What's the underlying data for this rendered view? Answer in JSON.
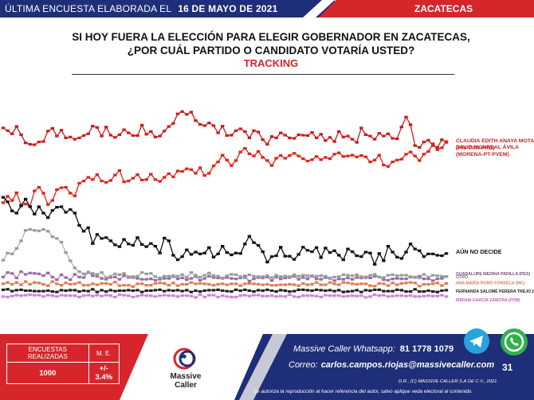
{
  "header": {
    "left_label": "ÚLTIMA ENCUESTA ELABORADA EL",
    "date": "16 DE MAYO DE 2021",
    "region": "ZACATECAS"
  },
  "title_line1": "SI HOY FUERA LA ELECCIÓN PARA ELEGIR GOBERNADOR EN ZACATECAS,",
  "title_line2": "¿POR CUÁL PARTIDO O CANDIDATO VOTARÍA USTED?",
  "subtitle": "TRACKING",
  "colors": {
    "blue": "#1f2e78",
    "red": "#d6262c",
    "anaya": "#c81e1e",
    "monreal": "#e2231a",
    "no_decide": "#111111",
    "medina": "#9a6aa6",
    "romo": "#e07b52",
    "otro": "#9b9b9b",
    "perera": "#222222",
    "garcia": "#d77fd8"
  },
  "chart_data": {
    "type": "line",
    "x_points": 100,
    "ylim": [
      0,
      50
    ],
    "grid": false,
    "legend": "right-end labels",
    "series": [
      {
        "name": "CLAUDIA EDITH ANAYA MOTA (PRI-PAN-PRD)",
        "key": "anaya",
        "values": [
          40.2,
          39.6,
          38.9,
          40.5,
          38.7,
          36.9,
          36.6,
          36.5,
          37.1,
          37.2,
          39.5,
          40.1,
          38.4,
          39.7,
          38.0,
          38.2,
          37.7,
          38.0,
          38.5,
          38.9,
          40.6,
          40.3,
          38.4,
          40.4,
          38.6,
          38.1,
          38.7,
          39.8,
          39.1,
          38.5,
          38.5,
          40.8,
          38.8,
          39.4,
          38.2,
          38.4,
          39.5,
          40.5,
          41.2,
          43.3,
          43.8,
          43.2,
          43.7,
          41.8,
          41.0,
          40.7,
          41.3,
          40.7,
          39.1,
          40.6,
          38.5,
          38.6,
          39.6,
          40.0,
          39.4,
          38.0,
          39.6,
          39.3,
          37.6,
          36.6,
          38.3,
          38.0,
          39.1,
          38.6,
          38.0,
          37.9,
          38.7,
          38.6,
          38.5,
          39.2,
          38.0,
          38.8,
          37.4,
          38.1,
          37.2,
          39.4,
          38.2,
          38.4,
          37.7,
          37.0,
          40.2,
          38.7,
          38.4,
          37.7,
          39.0,
          38.4,
          38.9,
          37.9,
          37.8,
          40.4,
          42.6,
          40.9,
          36.3,
          35.9,
          37.1,
          37.5,
          36.3,
          35.9,
          37.6,
          37.0
        ]
      },
      {
        "name": "DAVID MONREAL ÁVILA (MORENA-PT-PVEM)",
        "key": "monreal",
        "values": [
          23.7,
          25.1,
          24.2,
          25.9,
          23.2,
          23.4,
          22.9,
          26.3,
          27.1,
          25.8,
          23.3,
          24.2,
          26.6,
          27.0,
          27.1,
          25.8,
          25.2,
          28.0,
          28.5,
          29.3,
          28.8,
          29.9,
          28.5,
          28.2,
          28.6,
          29.8,
          30.8,
          28.3,
          28.5,
          29.1,
          29.9,
          28.7,
          28.8,
          30.0,
          28.8,
          28.4,
          29.3,
          30.1,
          29.4,
          30.7,
          30.6,
          31.2,
          31.0,
          30.2,
          31.4,
          29.7,
          30.2,
          31.8,
          32.7,
          34.2,
          33.1,
          31.9,
          33.0,
          34.9,
          35.7,
          34.5,
          34.0,
          35.0,
          33.7,
          33.0,
          31.9,
          33.5,
          34.1,
          33.5,
          34.1,
          34.6,
          34.0,
          33.4,
          32.9,
          33.2,
          33.9,
          33.2,
          33.7,
          33.4,
          34.4,
          34.7,
          33.9,
          34.0,
          34.2,
          33.8,
          34.1,
          33.8,
          32.7,
          33.1,
          34.2,
          32.0,
          31.7,
          32.7,
          33.1,
          33.3,
          34.4,
          34.9,
          34.0,
          33.0,
          34.4,
          35.0,
          36.7,
          35.4,
          35.8,
          37.2
        ]
      },
      {
        "name": "AÚN NO DECIDE",
        "key": "no_decide",
        "values": [
          24.9,
          23.9,
          21.9,
          21.4,
          23.0,
          24.5,
          22.8,
          21.2,
          22.8,
          21.4,
          20.4,
          22.0,
          22.7,
          22.8,
          21.6,
          22.2,
          21.4,
          18.7,
          17.4,
          18.2,
          14.7,
          16.7,
          15.8,
          16.0,
          15.3,
          14.4,
          14.0,
          15.6,
          14.6,
          14.3,
          16.0,
          14.5,
          14.0,
          14.7,
          14.1,
          12.6,
          15.9,
          15.3,
          12.1,
          11.1,
          11.8,
          13.3,
          12.3,
          12.8,
          12.4,
          12.6,
          13.8,
          11.7,
          12.4,
          14.1,
          12.7,
          12.2,
          12.6,
          12.5,
          14.6,
          16.3,
          14.9,
          14.3,
          12.9,
          10.6,
          11.8,
          12.0,
          13.9,
          11.9,
          11.9,
          11.2,
          12.3,
          13.9,
          13.2,
          12.9,
          13.8,
          11.6,
          13.7,
          12.7,
          13.1,
          12.1,
          11.1,
          13.5,
          12.9,
          12.0,
          11.8,
          12.8,
          12.6,
          10.1,
          12.5,
          10.9,
          14.1,
          12.8,
          11.7,
          11.4,
          12.8,
          14.6,
          13.5,
          13.1,
          11.8,
          12.4,
          12.4,
          12.1,
          12.0,
          12.5
        ]
      },
      {
        "name": "GUADALUPE MEDINA PADILLA (PES)",
        "key": "medina",
        "values": [
          7.3,
          8.3,
          8.1,
          7.1,
          8.5,
          7.9,
          8.2,
          8.1,
          8.0,
          7.6,
          8.2,
          7.3,
          6.7,
          7.8,
          7.2,
          6.7,
          7.9,
          7.3,
          7.2,
          8.3,
          7.6,
          7.5,
          7.0,
          6.8,
          7.2,
          7.3,
          6.8,
          7.6,
          7.2,
          7.2,
          7.0,
          6.8,
          6.8,
          6.9,
          6.6,
          6.8,
          7.0,
          7.0,
          7.4,
          6.9,
          7.1,
          6.7,
          7.0,
          7.4,
          6.6,
          7.0,
          7.5,
          7.2,
          7.1,
          7.0,
          7.2,
          7.0,
          6.9,
          7.1,
          7.5,
          6.4,
          6.9,
          7.2,
          7.1,
          7.3,
          6.5,
          7.3,
          6.9,
          7.1,
          7.2,
          7.5,
          6.8,
          7.2,
          6.9,
          7.5,
          6.9,
          6.8,
          7.2,
          7.0,
          6.5,
          6.9,
          6.8,
          7.1,
          6.8,
          7.2,
          7.1,
          7.3,
          7.1,
          7.5,
          7.3,
          6.7,
          6.6,
          6.9,
          7.0,
          6.9,
          6.9,
          7.3,
          7.2,
          7.5,
          6.9,
          6.9,
          6.5,
          6.9,
          7.0,
          7.4
        ]
      },
      {
        "name": "ANA MARÍA ROMO FONSECA (MC)",
        "key": "romo",
        "values": [
          5.8,
          6.1,
          5.7,
          6.1,
          5.6,
          6.3,
          5.7,
          6.1,
          6.0,
          5.7,
          5.4,
          6.3,
          5.8,
          5.5,
          6.0,
          5.7,
          5.8,
          6.1,
          5.5,
          5.5,
          5.8,
          5.6,
          5.9,
          5.9,
          5.7,
          6.2,
          5.4,
          5.5,
          5.5,
          5.2,
          5.8,
          5.8,
          5.5,
          5.5,
          5.9,
          6.0,
          5.9,
          5.5,
          6.0,
          5.4,
          5.7,
          5.7,
          6.1,
          5.8,
          5.9,
          5.8,
          5.7,
          5.5,
          5.7,
          5.8,
          5.6,
          5.8,
          5.8,
          5.4,
          5.8,
          5.9,
          5.8,
          5.7,
          5.6,
          5.7,
          5.5,
          5.5,
          5.6,
          5.6,
          5.7,
          5.6,
          5.4,
          5.9,
          5.6,
          5.7,
          6.1,
          5.6,
          5.6,
          6.1,
          5.8,
          5.6,
          6.1,
          6.0,
          5.8,
          5.7,
          5.8,
          5.8,
          5.4,
          5.3,
          5.9,
          5.8,
          5.4,
          6.0,
          5.6,
          5.9,
          6.0,
          6.1,
          6.0,
          5.3,
          5.7,
          5.7,
          5.8,
          6.0,
          5.4,
          5.9
        ]
      },
      {
        "name": "OTRO",
        "key": "otro",
        "values": [
          11.0,
          12.6,
          12.4,
          13.6,
          15.3,
          17.6,
          17.8,
          17.6,
          17.5,
          17.8,
          17.4,
          16.2,
          15.8,
          15.0,
          12.7,
          10.9,
          9.3,
          8.5,
          8.0,
          8.4,
          8.1,
          7.9,
          8.3,
          7.2,
          7.5,
          8.0,
          7.8,
          8.1,
          7.4,
          7.4,
          7.5,
          8.3,
          8.0,
          8.1,
          7.4,
          7.1,
          7.5,
          7.5,
          7.6,
          7.5,
          7.8,
          7.3,
          8.3,
          7.7,
          7.3,
          7.7,
          8.2,
          7.6,
          7.5,
          7.1,
          7.6,
          7.9,
          7.8,
          7.4,
          7.1,
          7.8,
          7.5,
          7.4,
          7.4,
          7.6,
          7.2,
          7.7,
          7.4,
          7.5,
          7.4,
          7.8,
          7.5,
          7.7,
          7.6,
          7.6,
          7.5,
          7.6,
          7.5,
          7.1,
          7.3,
          7.4,
          7.8,
          7.7,
          7.6,
          7.8,
          7.4,
          7.1,
          7.7,
          7.9,
          7.3,
          7.2,
          7.7,
          7.8,
          7.6,
          7.7,
          7.7,
          7.4,
          7.3,
          7.1,
          7.9,
          7.3,
          7.7,
          7.6,
          7.5,
          7.4
        ]
      },
      {
        "name": "FERNANDA SALOMÉ PERERA TREJO (RSP)",
        "key": "perera",
        "values": [
          4.5,
          4.6,
          4.2,
          4.4,
          4.5,
          4.3,
          4.3,
          4.2,
          4.2,
          4.2,
          4.3,
          4.1,
          4.0,
          4.4,
          4.3,
          4.4,
          4.4,
          4.1,
          4.3,
          4.2,
          4.6,
          4.0,
          4.4,
          4.1,
          4.4,
          4.2,
          4.3,
          4.3,
          4.4,
          4.3,
          4.4,
          4.0,
          4.3,
          4.3,
          4.4,
          4.5,
          4.2,
          4.4,
          4.3,
          4.4,
          4.2,
          4.4,
          4.0,
          4.3,
          4.1,
          4.3,
          4.4,
          4.4,
          4.5,
          4.3,
          4.2,
          4.1,
          4.5,
          4.3,
          4.5,
          4.3,
          4.1,
          4.4,
          4.3,
          4.5,
          4.3,
          4.1,
          4.4,
          4.3,
          4.1,
          4.2,
          4.5,
          4.5,
          4.4,
          4.3,
          4.5,
          4.4,
          4.3,
          4.4,
          4.2,
          4.4,
          4.0,
          4.1,
          4.2,
          4.4,
          4.0,
          4.4,
          4.3,
          4.5,
          4.5,
          4.2,
          4.2,
          4.2,
          4.5,
          4.4,
          4.1,
          4.1,
          4.6,
          4.1,
          4.1,
          4.3,
          4.1,
          4.0,
          4.3,
          4.4
        ]
      },
      {
        "name": "MIRIAM GARCÍA ZAMORA (FPM)",
        "key": "garcia",
        "values": [
          3.0,
          2.9,
          3.1,
          3.3,
          3.2,
          3.3,
          3.4,
          3.3,
          3.3,
          3.0,
          3.3,
          3.2,
          3.0,
          3.3,
          3.2,
          3.2,
          3.2,
          2.9,
          3.2,
          3.3,
          3.1,
          3.3,
          3.1,
          3.3,
          3.2,
          2.9,
          3.4,
          3.3,
          3.2,
          2.9,
          3.1,
          3.3,
          3.2,
          3.2,
          3.0,
          3.2,
          3.3,
          3.2,
          3.2,
          3.0,
          3.2,
          3.2,
          3.1,
          2.8,
          3.4,
          2.9,
          3.3,
          3.3,
          2.9,
          3.2,
          3.0,
          2.9,
          2.9,
          3.2,
          3.3,
          3.1,
          3.3,
          3.3,
          3.1,
          3.1,
          3.2,
          3.0,
          3.1,
          3.0,
          3.4,
          3.0,
          2.9,
          3.2,
          3.2,
          3.2,
          3.1,
          2.9,
          3.3,
          3.2,
          3.2,
          3.2,
          3.0,
          3.1,
          3.2,
          3.1,
          3.2,
          2.8,
          3.0,
          3.4,
          3.2,
          3.3,
          3.0,
          3.1,
          3.2,
          3.2,
          3.1,
          3.2,
          3.0,
          3.0,
          3.1,
          3.2,
          3.1,
          3.1,
          3.3,
          3.0
        ]
      }
    ]
  },
  "footer": {
    "table_col1": "ENCUESTAS REALIZADAS",
    "table_col2": "M. E.",
    "table_val1": "1000",
    "table_val2": "+/- 3.4%",
    "logo_line1": "Massive",
    "logo_line2": "Caller",
    "whatsapp_label": "Massive Caller Whatsapp:",
    "whatsapp_number": "81 1778 1079",
    "mail_label": "Correo:",
    "mail_address": "carlos.campos.riojas@massivecaller.com",
    "rights": "D.R., (C) MASSIVE CALLER S.A DE C.V., 2021.",
    "disclaimer": "Se autoriza la reproducción al hacer referencia del autor, salvo aplique veda electoral al contenido.",
    "badge_count": "31"
  }
}
